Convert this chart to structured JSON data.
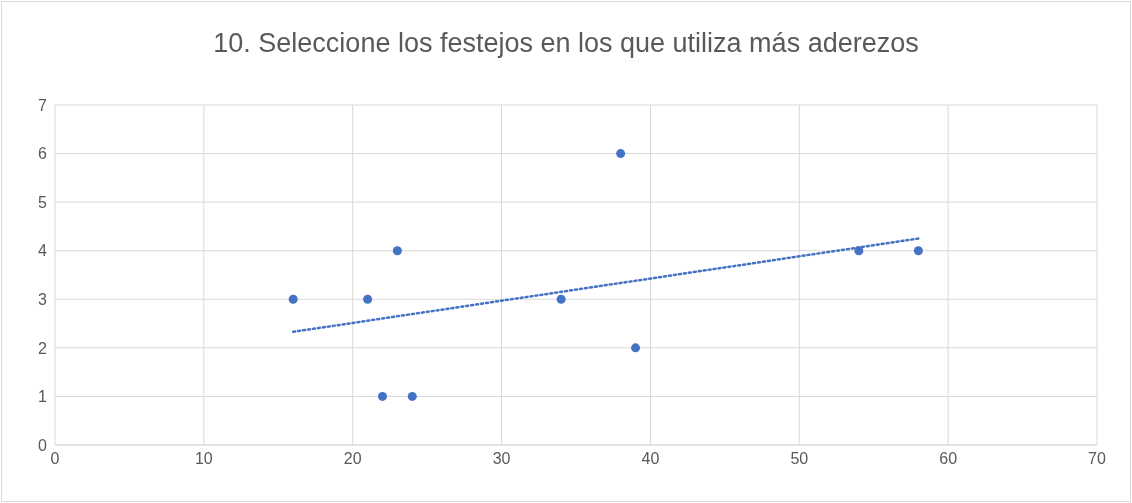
{
  "chart_data": {
    "type": "scatter",
    "title": "10. Seleccione los festejos en los que utiliza más aderezos",
    "x": [
      16,
      21,
      22,
      23,
      24,
      34,
      38,
      39,
      54,
      58
    ],
    "series": [
      {
        "type": "scatter",
        "color": "#4472c4",
        "marker": "circle",
        "values": [
          3,
          3,
          1,
          4,
          1,
          3,
          6,
          2,
          4,
          4
        ]
      },
      {
        "type": "line",
        "color": "#4472c4",
        "marker": "none",
        "line_style": "dotted",
        "x": [
          16,
          58
        ],
        "values": [
          2.33,
          4.25
        ]
      }
    ],
    "xlim": [
      0,
      70
    ],
    "xticks": [
      0,
      10,
      20,
      30,
      40,
      50,
      60,
      70
    ],
    "ylim": [
      0,
      7
    ],
    "yticks": [
      0,
      1,
      2,
      3,
      4,
      5,
      6,
      7
    ],
    "grid": true
  }
}
